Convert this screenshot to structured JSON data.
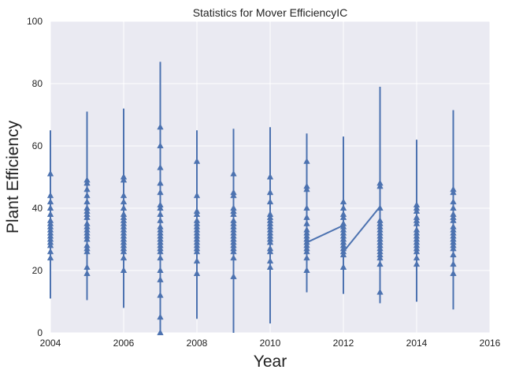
{
  "chart_data": {
    "type": "line",
    "title": "Statistics for Mover EfficiencyIC",
    "xlabel": "Year",
    "ylabel": "Plant Efficiency",
    "xlim": [
      2004,
      2016
    ],
    "ylim": [
      0,
      100
    ],
    "x_ticks": [
      "2004",
      "2006",
      "2008",
      "2010",
      "2012",
      "2014",
      "2016"
    ],
    "y_ticks": [
      "0",
      "20",
      "40",
      "60",
      "80",
      "100"
    ],
    "grid": true,
    "marker": "triangle-up",
    "series_color": "#4c72b0",
    "plot_background": "#eaeaf2",
    "grid_color": "#ffffff",
    "series": [
      {
        "years": [
          {
            "x": 2004,
            "min": 11,
            "max": 65,
            "markers": [
              24,
              26,
              28,
              29,
              30,
              31,
              32,
              33,
              34,
              35,
              36,
              38,
              40,
              42,
              44,
              51
            ]
          },
          {
            "x": 2005,
            "min": 10.5,
            "max": 71,
            "markers": [
              19,
              21,
              26,
              27,
              28,
              30,
              31,
              32,
              33,
              34,
              35,
              37,
              38,
              39,
              40,
              42,
              44,
              46,
              48,
              49
            ]
          },
          {
            "x": 2006,
            "min": 8,
            "max": 72,
            "markers": [
              20,
              24,
              26,
              27,
              28,
              29,
              30,
              31,
              32,
              33,
              34,
              35,
              36,
              37,
              38,
              40,
              42,
              44,
              49,
              50
            ]
          },
          {
            "x": 2007,
            "min": 0,
            "max": 87,
            "markers": [
              0,
              5,
              12,
              17,
              20,
              24,
              26,
              27,
              28,
              29,
              30,
              31,
              32,
              33,
              34,
              36,
              38,
              40,
              41,
              45,
              48,
              53,
              60,
              66
            ]
          },
          {
            "x": 2008,
            "min": 4.5,
            "max": 65,
            "markers": [
              19,
              23,
              26,
              27,
              28,
              29,
              30,
              31,
              32,
              33,
              34,
              35,
              36,
              38,
              39,
              44,
              55
            ]
          },
          {
            "x": 2009,
            "min": 0,
            "max": 65.5,
            "markers": [
              18,
              24,
              26,
              27,
              28,
              29,
              30,
              31,
              32,
              33,
              34,
              35,
              36,
              38,
              39,
              40,
              44,
              45,
              51
            ]
          },
          {
            "x": 2010,
            "min": 3,
            "max": 66,
            "markers": [
              21,
              23,
              26,
              27,
              29,
              30,
              31,
              32,
              33,
              34,
              35,
              36,
              37,
              38,
              42,
              45,
              50
            ]
          },
          {
            "x": 2011,
            "min": 13,
            "max": 64,
            "markers": [
              20,
              24,
              26,
              27,
              28,
              29,
              30,
              31,
              32,
              33,
              35,
              37,
              40,
              46,
              47,
              55
            ]
          },
          {
            "x": 2012,
            "min": 12.5,
            "max": 63,
            "markers": [
              21,
              25,
              26,
              27,
              28,
              29,
              30,
              31,
              32,
              33,
              34,
              35,
              37,
              38,
              40,
              42
            ]
          },
          {
            "x": 2013,
            "min": 9.5,
            "max": 79,
            "markers": [
              13,
              22,
              24,
              25,
              26,
              27,
              28,
              29,
              30,
              31,
              32,
              33,
              34,
              35,
              36,
              40,
              47,
              48
            ]
          },
          {
            "x": 2014,
            "min": 10,
            "max": 62,
            "markers": [
              22,
              24,
              26,
              27,
              28,
              29,
              30,
              31,
              32,
              33,
              35,
              36,
              37,
              39,
              40,
              41
            ]
          },
          {
            "x": 2015,
            "min": 7.5,
            "max": 71.5,
            "markers": [
              19,
              22,
              25,
              27,
              28,
              29,
              30,
              31,
              32,
              33,
              34,
              36,
              37,
              38,
              40,
              42,
              45,
              46
            ]
          }
        ],
        "connectors": [
          {
            "x": [
              2011,
              2012
            ],
            "y": [
              29,
              34.5
            ]
          },
          {
            "x": [
              2012,
              2013
            ],
            "y": [
              26,
              40.5
            ]
          }
        ]
      }
    ]
  }
}
